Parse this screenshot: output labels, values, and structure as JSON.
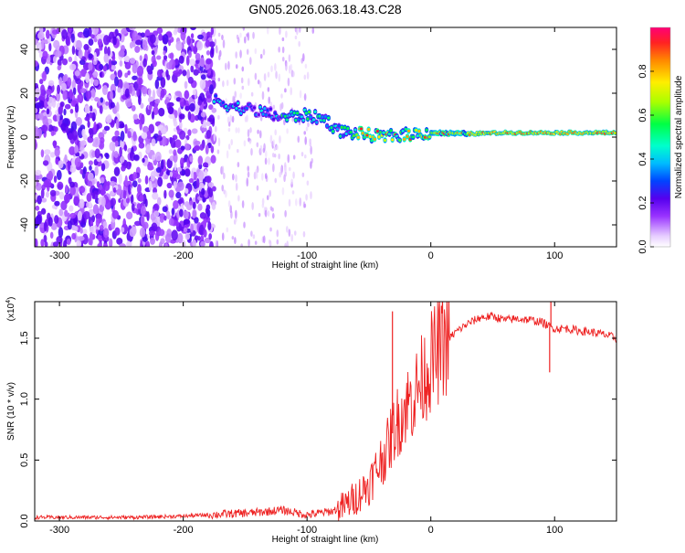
{
  "chart_data": [
    {
      "type": "heatmap",
      "title": "GN05.2026.063.18.43.C28",
      "xlabel": "Height of straight line (km)",
      "ylabel": "Frequency (Hz)",
      "xlim": [
        -320,
        150
      ],
      "ylim": [
        -50,
        50
      ],
      "xticks": [
        -300,
        -200,
        -100,
        0,
        100
      ],
      "yticks": [
        -40,
        -20,
        0,
        20,
        40
      ],
      "colorbar": {
        "label": "Normalized spectral amplitude",
        "range": [
          0,
          1
        ],
        "ticks": [
          0.0,
          0.2,
          0.4,
          0.6,
          0.8
        ]
      },
      "signal_track": {
        "x": [
          -175,
          -160,
          -140,
          -120,
          -100,
          -85,
          -75,
          -65,
          -50,
          -40,
          -25,
          0,
          30,
          60,
          100,
          150
        ],
        "frequency": [
          17,
          14,
          12,
          9,
          10,
          8,
          3,
          2,
          1,
          0,
          1,
          2,
          1.5,
          2,
          2,
          2
        ]
      },
      "noise_region": {
        "x_range": [
          -320,
          -175
        ]
      },
      "sparse_region": {
        "x_range": [
          -175,
          -95
        ]
      }
    },
    {
      "type": "line",
      "xlabel": "Height of straight line (km)",
      "ylabel": "SNR (10 * v/v)",
      "multiplier": "(x10",
      "multiplier_exp": "4",
      "multiplier_close": ")",
      "xlim": [
        -320,
        150
      ],
      "ylim": [
        0,
        1.8
      ],
      "xticks": [
        -300,
        -200,
        -100,
        0,
        100
      ],
      "yticks": [
        0.0,
        0.5,
        1.0,
        1.5
      ],
      "series": [
        {
          "name": "SNR",
          "color": "#ee2222",
          "x": [
            -320,
            -280,
            -240,
            -200,
            -180,
            -160,
            -140,
            -120,
            -100,
            -80,
            -70,
            -60,
            -50,
            -40,
            -35,
            -30,
            -25,
            -20,
            -15,
            -10,
            -5,
            0,
            10,
            20,
            30,
            40,
            50,
            60,
            70,
            80,
            90,
            95,
            100,
            110,
            120,
            130,
            140,
            150
          ],
          "y": [
            0.03,
            0.03,
            0.03,
            0.04,
            0.05,
            0.06,
            0.07,
            0.09,
            0.05,
            0.08,
            0.12,
            0.2,
            0.3,
            0.5,
            0.6,
            0.75,
            0.85,
            0.95,
            1.0,
            1.1,
            1.2,
            1.3,
            1.45,
            1.55,
            1.62,
            1.67,
            1.68,
            1.65,
            1.66,
            1.65,
            1.63,
            1.6,
            1.58,
            1.58,
            1.56,
            1.55,
            1.53,
            1.5
          ],
          "spikes": [
            {
              "x": -31,
              "y": 1.72
            },
            {
              "x": 97,
              "y": 1.82
            },
            {
              "x": 96,
              "y": 1.22
            }
          ]
        }
      ]
    }
  ]
}
